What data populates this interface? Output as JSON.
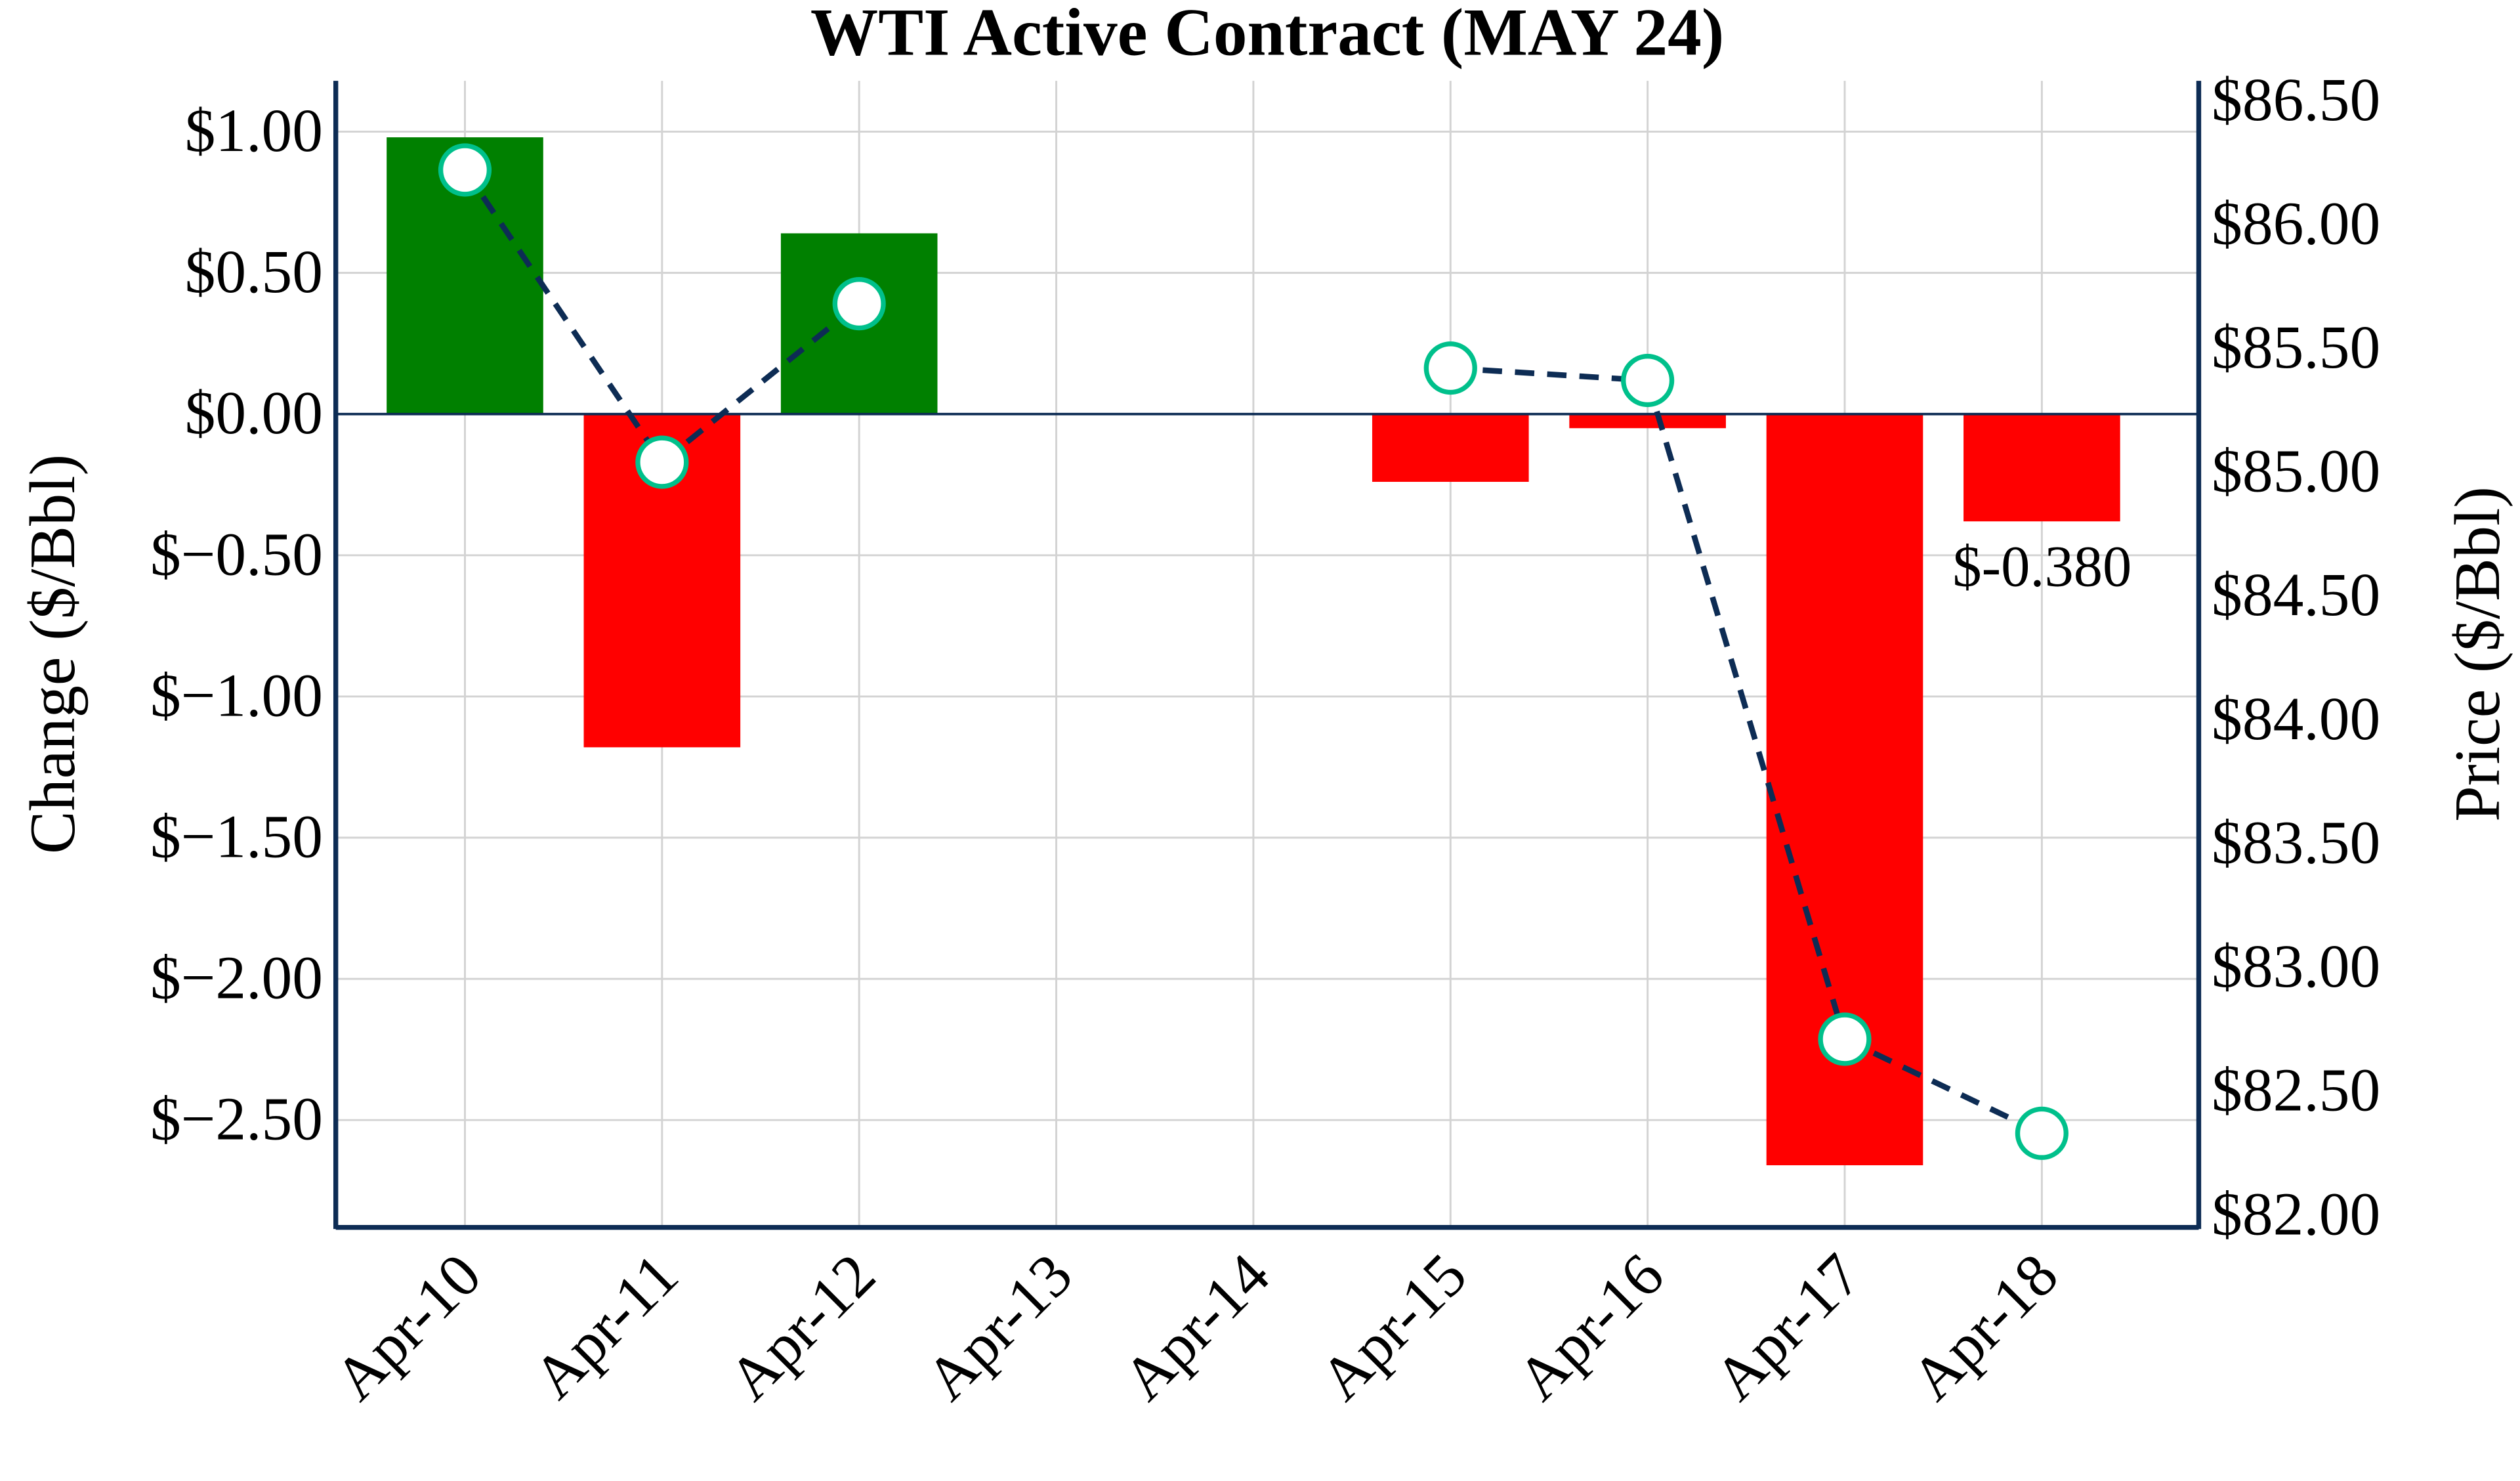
{
  "chart_data": {
    "type": "bar+line",
    "title": "WTI Active Contract (MAY 24)",
    "categories": [
      "Apr-10",
      "Apr-11",
      "Apr-12",
      "Apr-13",
      "Apr-14",
      "Apr-15",
      "Apr-16",
      "Apr-17",
      "Apr-18"
    ],
    "series": [
      {
        "name": "Change",
        "axis": "left",
        "type": "bar",
        "values": [
          0.98,
          -1.18,
          0.64,
          null,
          null,
          -0.24,
          -0.05,
          -2.66,
          -0.38
        ]
      },
      {
        "name": "Price",
        "axis": "right",
        "type": "line",
        "values": [
          86.22,
          85.04,
          85.68,
          null,
          null,
          85.42,
          85.37,
          82.71,
          82.33
        ]
      }
    ],
    "annotation": "$-0.380",
    "ylabel": "Change ($/Bbl)",
    "y2label": "Price ($/Bbl)",
    "ylim": [
      -2.88,
      1.18
    ],
    "y2lim": [
      81.95,
      86.58
    ],
    "yticks": [
      "$1.00",
      "$0.50",
      "$0.00",
      "$−0.50",
      "$−1.00",
      "$−1.50",
      "$−2.00",
      "$−2.50"
    ],
    "ytick_values": [
      1,
      0.5,
      0,
      -0.5,
      -1,
      -1.5,
      -2,
      -2.5
    ],
    "y2ticks": [
      "$86.50",
      "$86.00",
      "$85.50",
      "$85.00",
      "$84.50",
      "$84.00",
      "$83.50",
      "$83.00",
      "$82.50",
      "$82.00"
    ],
    "y2tick_values": [
      86.5,
      86,
      85.5,
      85,
      84.5,
      84,
      83.5,
      83,
      82.5,
      82
    ],
    "grid": true,
    "colors": {
      "up": "#008000",
      "down": "#ff0000",
      "line": "#0d2c54",
      "marker": "#00c08b",
      "axis": "#0d2c54",
      "grid": "#d3d3d3"
    }
  }
}
